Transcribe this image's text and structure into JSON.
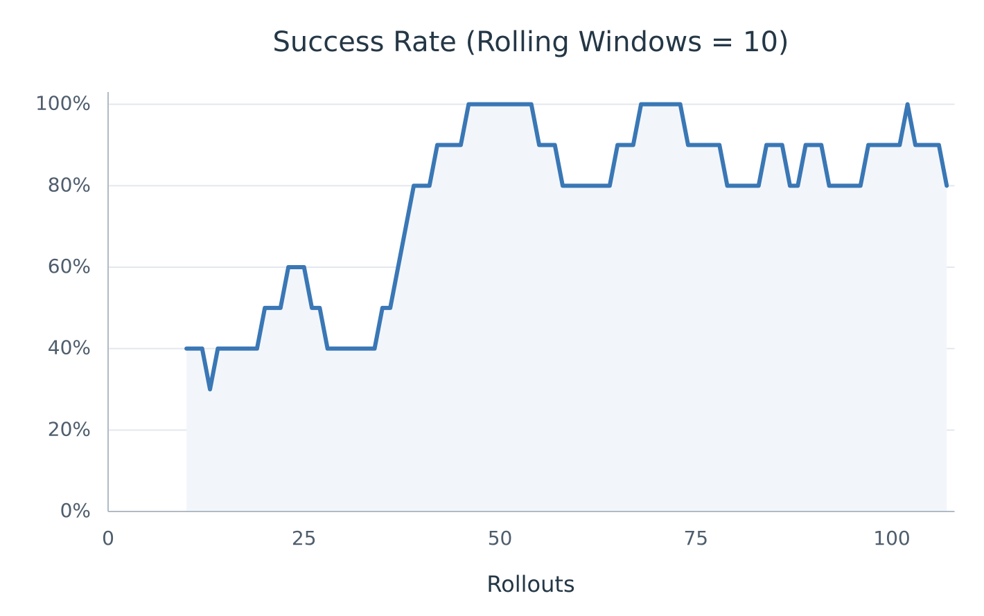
{
  "chart_data": {
    "type": "line",
    "title": "Success Rate (Rolling Windows = 10)",
    "x_label": "Rollouts",
    "x": [
      10,
      11,
      12,
      13,
      14,
      15,
      16,
      17,
      18,
      19,
      20,
      21,
      22,
      23,
      24,
      25,
      26,
      27,
      28,
      29,
      30,
      31,
      32,
      33,
      34,
      35,
      36,
      37,
      38,
      39,
      40,
      41,
      42,
      43,
      44,
      45,
      46,
      47,
      48,
      49,
      50,
      51,
      52,
      53,
      54,
      55,
      56,
      57,
      58,
      59,
      60,
      61,
      62,
      63,
      64,
      65,
      66,
      67,
      68,
      69,
      70,
      71,
      72,
      73,
      74,
      75,
      76,
      77,
      78,
      79,
      80,
      81,
      82,
      83,
      84,
      85,
      86,
      87,
      88,
      89,
      90,
      91,
      92,
      93,
      94,
      95,
      96,
      97,
      98,
      99,
      100,
      101,
      102,
      103,
      104,
      105,
      106,
      107
    ],
    "series": [
      {
        "color": "#3a77b5",
        "fill_color": "#f2f6fb",
        "values": [
          40,
          40,
          40,
          30,
          40,
          40,
          40,
          40,
          40,
          40,
          50,
          50,
          50,
          60,
          60,
          60,
          50,
          50,
          40,
          40,
          40,
          40,
          40,
          40,
          40,
          50,
          50,
          60,
          70,
          80,
          80,
          80,
          90,
          90,
          90,
          90,
          100,
          100,
          100,
          100,
          100,
          100,
          100,
          100,
          100,
          90,
          90,
          90,
          80,
          80,
          80,
          80,
          80,
          80,
          80,
          90,
          90,
          90,
          100,
          100,
          100,
          100,
          100,
          100,
          90,
          90,
          90,
          90,
          90,
          80,
          80,
          80,
          80,
          80,
          90,
          90,
          90,
          80,
          80,
          90,
          90,
          90,
          80,
          80,
          80,
          80,
          80,
          90,
          90,
          90,
          90,
          90,
          100,
          90,
          90,
          90,
          90,
          80
        ]
      }
    ],
    "xlim": [
      0,
      108
    ],
    "xticks": [
      0,
      25,
      50,
      75,
      100
    ],
    "ylim": [
      0,
      103
    ],
    "yticks": [
      {
        "value": 0,
        "label": "0%"
      },
      {
        "value": 20,
        "label": "20%"
      },
      {
        "value": 40,
        "label": "40%"
      },
      {
        "value": 60,
        "label": "60%"
      },
      {
        "value": 80,
        "label": "80%"
      },
      {
        "value": 100,
        "label": "100%"
      }
    ],
    "grid": true,
    "area_fill": true
  }
}
